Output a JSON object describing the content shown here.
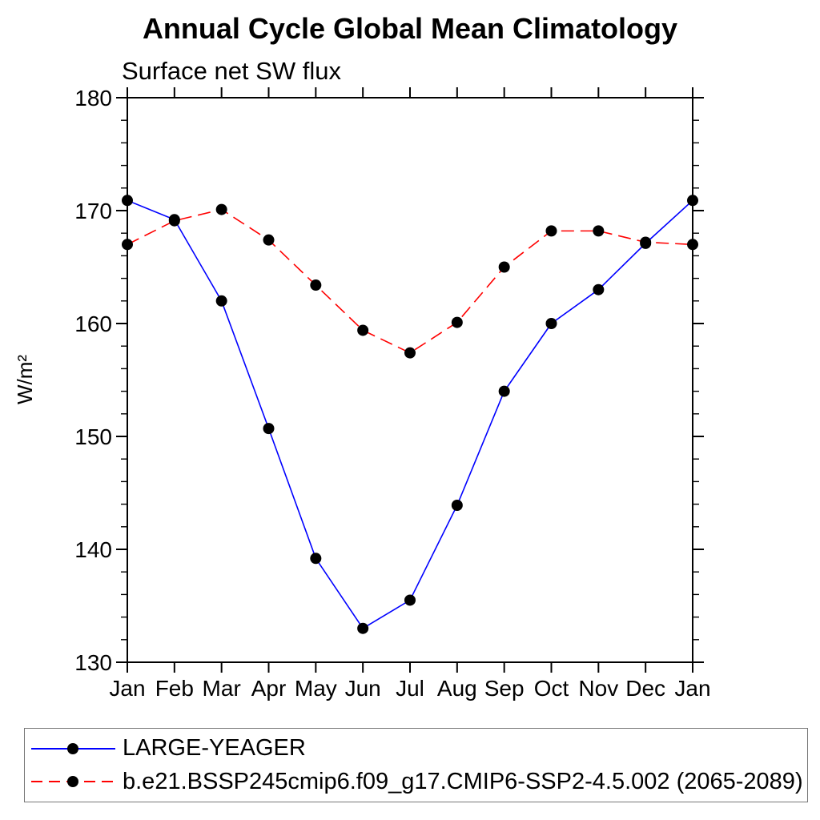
{
  "title": "Annual Cycle Global Mean Climatology",
  "subtitle": "Surface net SW flux",
  "chart_data": {
    "type": "line",
    "categories": [
      "Jan",
      "Feb",
      "Mar",
      "Apr",
      "May",
      "Jun",
      "Jul",
      "Aug",
      "Sep",
      "Oct",
      "Nov",
      "Dec",
      "Jan"
    ],
    "xlabel": "",
    "ylabel": "W/m²",
    "ylim": [
      130,
      180
    ],
    "ytick_major": 10,
    "ytick_minor": 2,
    "grid": false,
    "legend_position": "bottom",
    "marker_color": "#000000",
    "marker_shape": "filled-circle",
    "series": [
      {
        "name": "LARGE-YEAGER",
        "color": "#0000ff",
        "style": "solid",
        "values": [
          170.9,
          169.2,
          162.0,
          150.7,
          139.2,
          133.0,
          135.5,
          143.9,
          154.0,
          160.0,
          163.0,
          167.1,
          170.9
        ]
      },
      {
        "name": "b.e21.BSSP245cmip6.f09_g17.CMIP6-SSP2-4.5.002 (2065-2089)",
        "color": "#ff0000",
        "style": "dashed",
        "values": [
          167.0,
          169.1,
          170.1,
          167.4,
          163.4,
          159.4,
          157.4,
          160.1,
          165.0,
          168.2,
          168.2,
          167.2,
          167.0
        ]
      }
    ]
  }
}
